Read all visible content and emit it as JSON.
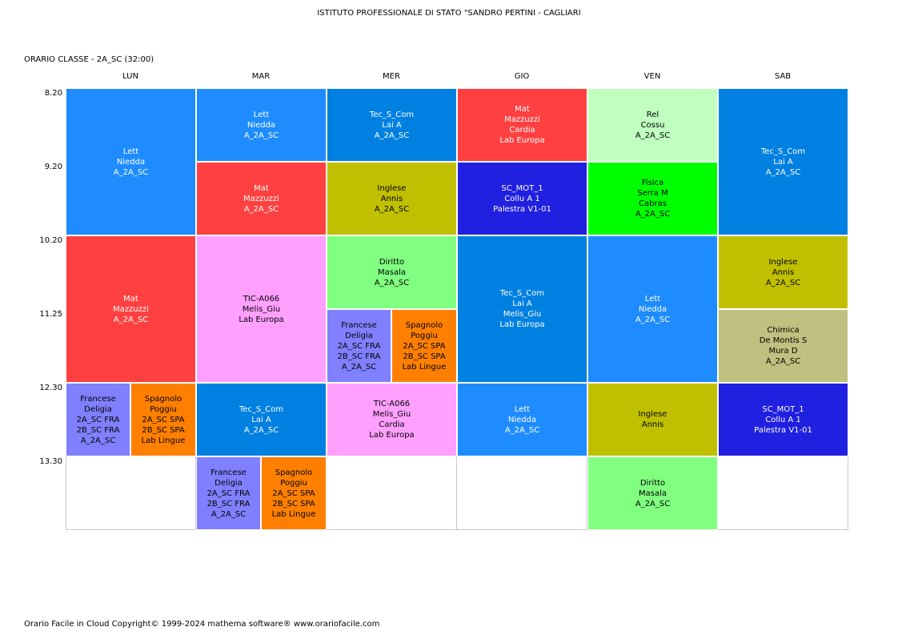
{
  "header": {
    "school": "ISTITUTO PROFESSIONALE DI STATO \"SANDRO PERTINI - CAGLIARI",
    "class_line": "ORARIO CLASSE   -   2A_SC  (32:00)"
  },
  "days": [
    "LUN",
    "MAR",
    "MER",
    "GIO",
    "VEN",
    "SAB"
  ],
  "times": [
    "8.20",
    "9.20",
    "10.20",
    "11.25",
    "12.30",
    "13.30"
  ],
  "footer": "Orario Facile in Cloud  Copyright© 1999-2024 mathema software®     www.orariofacile.com",
  "lessons": [
    {
      "day": 0,
      "start": 0,
      "span": 2,
      "sub": 0,
      "color": "#1e8cff",
      "lines": [
        "Lett",
        "Niedda",
        "A_2A_SC"
      ]
    },
    {
      "day": 0,
      "start": 2,
      "span": 2,
      "sub": 0,
      "color": "#ff4040",
      "lines": [
        "Mat",
        "Mazzuzzi",
        "A_2A_SC"
      ]
    },
    {
      "day": 0,
      "start": 4,
      "span": 1,
      "sub": 1,
      "color": "#8080ff",
      "lines": [
        "Francese",
        "Deligia",
        "2A_SC FRA",
        "2B_SC FRA",
        "A_2A_SC"
      ]
    },
    {
      "day": 0,
      "start": 4,
      "span": 1,
      "sub": 2,
      "color": "#ff8000",
      "lines": [
        "Spagnolo",
        "Poggiu",
        "2A_SC SPA",
        "2B_SC SPA",
        "Lab Lingue"
      ]
    },
    {
      "day": 1,
      "start": 0,
      "span": 1,
      "sub": 0,
      "color": "#1e8cff",
      "lines": [
        "Lett",
        "Niedda",
        "A_2A_SC"
      ]
    },
    {
      "day": 1,
      "start": 1,
      "span": 1,
      "sub": 0,
      "color": "#ff4040",
      "lines": [
        "Mat",
        "Mazzuzzi",
        "A_2A_SC"
      ]
    },
    {
      "day": 1,
      "start": 2,
      "span": 2,
      "sub": 0,
      "color": "#ffa0ff",
      "lines": [
        "TIC-A066",
        "Melis_Giu",
        "Lab Europa"
      ]
    },
    {
      "day": 1,
      "start": 4,
      "span": 1,
      "sub": 0,
      "color": "#0080e0",
      "lines": [
        "Tec_S_Com",
        "Lai A",
        "A_2A_SC"
      ]
    },
    {
      "day": 1,
      "start": 5,
      "span": 1,
      "sub": 1,
      "color": "#8080ff",
      "lines": [
        "Francese",
        "Deligia",
        "2A_SC FRA",
        "2B_SC FRA",
        "A_2A_SC"
      ]
    },
    {
      "day": 1,
      "start": 5,
      "span": 1,
      "sub": 2,
      "color": "#ff8000",
      "lines": [
        "Spagnolo",
        "Poggiu",
        "2A_SC SPA",
        "2B_SC SPA",
        "Lab Lingue"
      ]
    },
    {
      "day": 2,
      "start": 0,
      "span": 1,
      "sub": 0,
      "color": "#0080e0",
      "lines": [
        "Tec_S_Com",
        "Lai A",
        "A_2A_SC"
      ]
    },
    {
      "day": 2,
      "start": 1,
      "span": 1,
      "sub": 0,
      "color": "#c0c000",
      "lines": [
        "Inglese",
        "Annis",
        "A_2A_SC"
      ]
    },
    {
      "day": 2,
      "start": 2,
      "span": 1,
      "sub": 0,
      "color": "#80ff80",
      "lines": [
        "Diritto",
        "Masala",
        "A_2A_SC"
      ]
    },
    {
      "day": 2,
      "start": 3,
      "span": 1,
      "sub": 1,
      "color": "#8080ff",
      "lines": [
        "Francese",
        "Deligia",
        "2A_SC FRA",
        "2B_SC FRA",
        "A_2A_SC"
      ]
    },
    {
      "day": 2,
      "start": 3,
      "span": 1,
      "sub": 2,
      "color": "#ff8000",
      "lines": [
        "Spagnolo",
        "Poggiu",
        "2A_SC SPA",
        "2B_SC SPA",
        "Lab Lingue"
      ]
    },
    {
      "day": 2,
      "start": 4,
      "span": 1,
      "sub": 0,
      "color": "#ffa0ff",
      "lines": [
        "TIC-A066",
        "Melis_Giu",
        "Cardia",
        "Lab Europa"
      ]
    },
    {
      "day": 3,
      "start": 0,
      "span": 1,
      "sub": 0,
      "color": "#ff4040",
      "lines": [
        "Mat",
        "Mazzuzzi",
        "Cardia",
        "Lab Europa"
      ]
    },
    {
      "day": 3,
      "start": 1,
      "span": 1,
      "sub": 0,
      "color": "#2020e0",
      "lines": [
        "SC_MOT_1",
        "Collu A 1",
        "Palestra V1-01"
      ]
    },
    {
      "day": 3,
      "start": 2,
      "span": 2,
      "sub": 0,
      "color": "#0080e0",
      "lines": [
        "Tec_S_Com",
        "Lai A",
        "Melis_Giu",
        "Lab Europa"
      ]
    },
    {
      "day": 3,
      "start": 4,
      "span": 1,
      "sub": 0,
      "color": "#1e8cff",
      "lines": [
        "Lett",
        "Niedda",
        "A_2A_SC"
      ]
    },
    {
      "day": 4,
      "start": 0,
      "span": 1,
      "sub": 0,
      "color": "#c0ffc0",
      "lines": [
        "Rel",
        "Cossu",
        "A_2A_SC"
      ]
    },
    {
      "day": 4,
      "start": 1,
      "span": 1,
      "sub": 0,
      "color": "#00ff00",
      "lines": [
        "Fisica",
        "Serra M",
        "Cabras",
        "A_2A_SC"
      ]
    },
    {
      "day": 4,
      "start": 2,
      "span": 2,
      "sub": 0,
      "color": "#1e8cff",
      "lines": [
        "Lett",
        "Niedda",
        "A_2A_SC"
      ]
    },
    {
      "day": 4,
      "start": 4,
      "span": 1,
      "sub": 0,
      "color": "#c0c000",
      "lines": [
        "Inglese",
        "Annis"
      ]
    },
    {
      "day": 4,
      "start": 5,
      "span": 1,
      "sub": 0,
      "color": "#80ff80",
      "lines": [
        "Diritto",
        "Masala",
        "A_2A_SC"
      ]
    },
    {
      "day": 5,
      "start": 0,
      "span": 2,
      "sub": 0,
      "color": "#0080e0",
      "lines": [
        "Tec_S_Com",
        "Lai A",
        "A_2A_SC"
      ]
    },
    {
      "day": 5,
      "start": 2,
      "span": 1,
      "sub": 0,
      "color": "#c0c000",
      "lines": [
        "Inglese",
        "Annis",
        "A_2A_SC"
      ]
    },
    {
      "day": 5,
      "start": 3,
      "span": 1,
      "sub": 0,
      "color": "#c0c080",
      "lines": [
        "Chimica",
        "De Montis S",
        "Mura D",
        "A_2A_SC"
      ]
    },
    {
      "day": 5,
      "start": 4,
      "span": 1,
      "sub": 0,
      "color": "#2020e0",
      "lines": [
        "SC_MOT_1",
        "Collu A 1",
        "Palestra V1-01"
      ]
    }
  ]
}
